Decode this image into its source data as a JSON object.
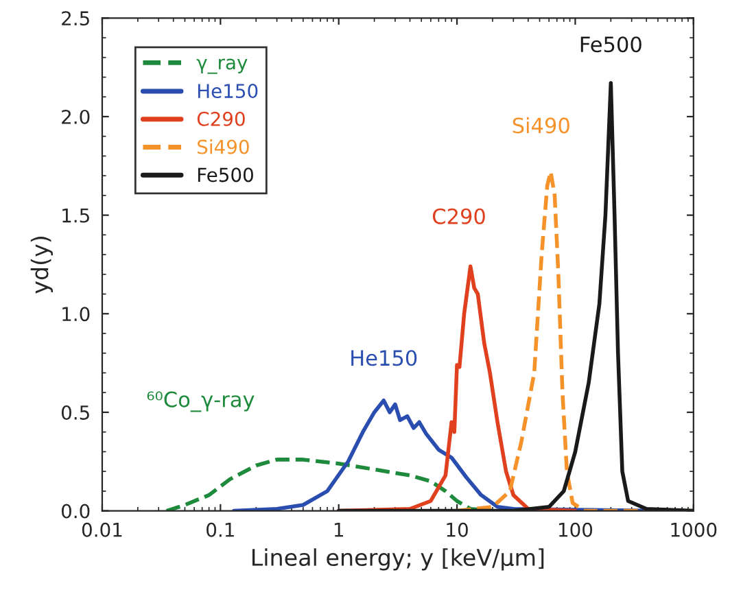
{
  "chart_data": {
    "type": "line",
    "xlabel": "Lineal energy; y [keV/μm]",
    "ylabel": "yd(y)",
    "log": "x",
    "xlim": [
      0.01,
      1000
    ],
    "xticks": [
      0.01,
      0.1,
      1,
      10,
      100,
      1000
    ],
    "ylim": [
      0,
      2.5
    ],
    "yticks": [
      {
        "value": 0,
        "label": "0.0"
      },
      {
        "value": 0.5,
        "label": "0.5"
      },
      {
        "value": 1,
        "label": "1.0"
      },
      {
        "value": 1.5,
        "label": "1.5"
      },
      {
        "value": 2,
        "label": "2.0"
      },
      {
        "value": 2.5,
        "label": "2.5"
      }
    ],
    "grid": false,
    "legend": "top left",
    "series": [
      {
        "name": "γ_ray",
        "color": "#1e8a3c",
        "line_style": "dashed",
        "x": [
          0.035,
          0.05,
          0.08,
          0.12,
          0.2,
          0.3,
          0.5,
          1,
          2,
          4,
          6,
          8,
          10,
          13,
          20
        ],
        "values": [
          0,
          0.03,
          0.08,
          0.16,
          0.23,
          0.26,
          0.26,
          0.24,
          0.21,
          0.18,
          0.15,
          0.1,
          0.05,
          0.01,
          0
        ]
      },
      {
        "name": "He150",
        "color": "#2a4db0",
        "line_style": "solid",
        "x": [
          0.13,
          0.3,
          0.5,
          0.8,
          1.2,
          1.6,
          2.0,
          2.4,
          2.7,
          3.0,
          3.3,
          3.8,
          4.3,
          4.8,
          5.5,
          7,
          9,
          12,
          16,
          22,
          30,
          500
        ],
        "values": [
          0,
          0.01,
          0.03,
          0.1,
          0.25,
          0.4,
          0.5,
          0.56,
          0.5,
          0.54,
          0.46,
          0.48,
          0.42,
          0.45,
          0.39,
          0.31,
          0.27,
          0.17,
          0.08,
          0.02,
          0.01,
          0
        ]
      },
      {
        "name": "C290",
        "color": "#e0401e",
        "line_style": "solid",
        "x": [
          1,
          4,
          6,
          8,
          9,
          9.5,
          10,
          10.5,
          11.5,
          13,
          14,
          15,
          17,
          19,
          22,
          26,
          30,
          40,
          100
        ],
        "values": [
          0,
          0.01,
          0.05,
          0.18,
          0.45,
          0.4,
          0.74,
          0.73,
          1.0,
          1.24,
          1.13,
          1.1,
          0.85,
          0.7,
          0.45,
          0.2,
          0.08,
          0.01,
          0
        ]
      },
      {
        "name": "Si490",
        "color": "#f5922a",
        "line_style": "dashed",
        "x": [
          10,
          20,
          28,
          35,
          45,
          52,
          58,
          62,
          67,
          72,
          78,
          85,
          95,
          120,
          1000
        ],
        "values": [
          0,
          0.02,
          0.1,
          0.35,
          0.7,
          1.3,
          1.65,
          1.72,
          1.6,
          1.2,
          0.6,
          0.2,
          0.04,
          0,
          0
        ]
      },
      {
        "name": "Fe500",
        "color": "#1a1a1a",
        "line_style": "solid",
        "x": [
          1,
          30,
          60,
          80,
          100,
          130,
          160,
          180,
          200,
          215,
          230,
          250,
          280,
          400,
          1000
        ],
        "values": [
          0,
          0,
          0.02,
          0.1,
          0.3,
          0.65,
          1.05,
          1.5,
          2.17,
          1.5,
          0.8,
          0.2,
          0.05,
          0.01,
          0
        ]
      }
    ],
    "annotations": [
      "Fe500",
      "Si490",
      "C290",
      "He150",
      "⁶⁰Co_γ-ray"
    ]
  }
}
